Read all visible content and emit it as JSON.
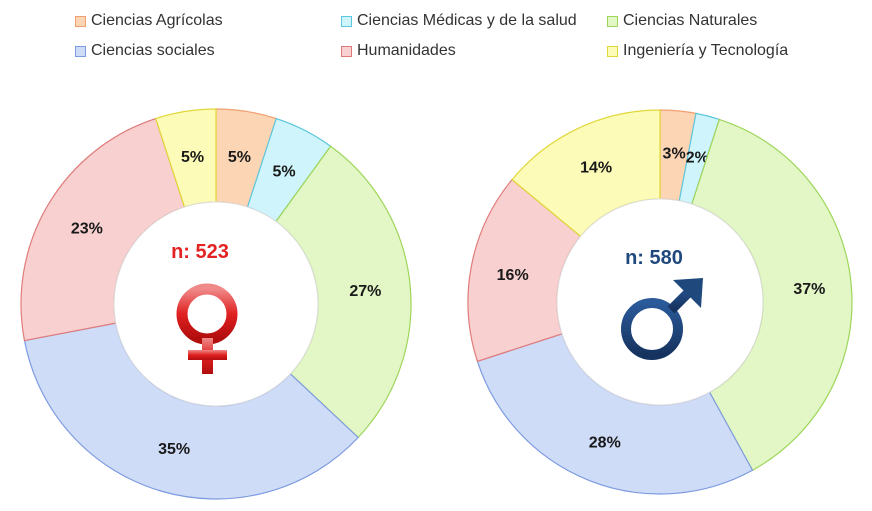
{
  "legend": [
    {
      "label": "Ciencias Agrícolas",
      "fill": "#fcd5b5",
      "stroke": "#f0a070"
    },
    {
      "label": "Ciencias Médicas y de la salud",
      "fill": "#d0f4fb",
      "stroke": "#5cc8de"
    },
    {
      "label": "Ciencias Naturales",
      "fill": "#e2f6c6",
      "stroke": "#9ed65a"
    },
    {
      "label": "Ciencias sociales",
      "fill": "#cfdcf7",
      "stroke": "#7d9be0"
    },
    {
      "label": "Humanidades",
      "fill": "#f8d0d0",
      "stroke": "#e07b7b"
    },
    {
      "label": "Ingeniería y Tecnología",
      "fill": "#fcfbb8",
      "stroke": "#e0d838"
    }
  ],
  "chart_data": [
    {
      "type": "pie",
      "variant": "donut",
      "center_label": "n: 523",
      "center_color": "#e32222",
      "symbol": "female-symbol",
      "categories": [
        "Ciencias Agrícolas",
        "Ciencias Médicas y de la salud",
        "Ciencias Naturales",
        "Ciencias sociales",
        "Humanidades",
        "Ingeniería y Tecnología"
      ],
      "values": [
        5,
        5,
        27,
        35,
        23,
        5
      ],
      "labels": [
        "5%",
        "5%",
        "27%",
        "35%",
        "23%",
        "5%"
      ]
    },
    {
      "type": "pie",
      "variant": "donut",
      "center_label": "n: 580",
      "center_color": "#1f497d",
      "symbol": "male-symbol",
      "categories": [
        "Ciencias Agrícolas",
        "Ciencias Médicas y de la salud",
        "Ciencias Naturales",
        "Ciencias sociales",
        "Humanidades",
        "Ingeniería y Tecnología"
      ],
      "values": [
        3,
        2,
        37,
        28,
        16,
        14
      ],
      "labels": [
        "3%",
        "2%",
        "37%",
        "28%",
        "16%",
        "14%"
      ]
    }
  ]
}
